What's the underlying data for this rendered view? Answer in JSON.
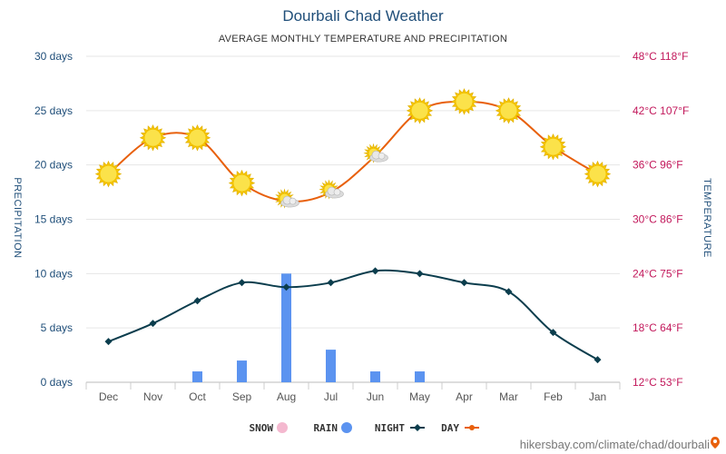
{
  "chart_data": {
    "type": "line",
    "title": "Dourbali Chad Weather",
    "subtitle": "AVERAGE MONTHLY TEMPERATURE AND PRECIPITATION",
    "categories": [
      "Jan",
      "Feb",
      "Mar",
      "Apr",
      "May",
      "Jun",
      "Jul",
      "Aug",
      "Sep",
      "Oct",
      "Nov",
      "Dec"
    ],
    "left_axis": {
      "label": "PRECIPITATION",
      "ylim": [
        0,
        30
      ],
      "ticks": [
        {
          "value": 0,
          "label": "0 days"
        },
        {
          "value": 5,
          "label": "5 days"
        },
        {
          "value": 10,
          "label": "10 days"
        },
        {
          "value": 15,
          "label": "15 days"
        },
        {
          "value": 20,
          "label": "20 days"
        },
        {
          "value": 25,
          "label": "25 days"
        },
        {
          "value": 30,
          "label": "30 days"
        }
      ]
    },
    "right_axis": {
      "label": "TEMPERATURE",
      "ylim": [
        12,
        48
      ],
      "ticks": [
        {
          "value": 12,
          "label": "12°C 53°F"
        },
        {
          "value": 18,
          "label": "18°C 64°F"
        },
        {
          "value": 24,
          "label": "24°C 75°F"
        },
        {
          "value": 30,
          "label": "30°C 86°F"
        },
        {
          "value": 36,
          "label": "36°C 96°F"
        },
        {
          "value": 42,
          "label": "42°C 107°F"
        },
        {
          "value": 48,
          "label": "48°C 118°F"
        }
      ]
    },
    "series": [
      {
        "name": "DAY",
        "axis": "right",
        "color": "#e8600c",
        "values": [
          35,
          38,
          42,
          43,
          42,
          37,
          33,
          32,
          34,
          39,
          39,
          35
        ]
      },
      {
        "name": "NIGHT",
        "axis": "right",
        "color": "#0b3d4d",
        "values": [
          14.5,
          17.5,
          22,
          23,
          24,
          24.3,
          23,
          22.5,
          23,
          21,
          18.5,
          16.5
        ]
      },
      {
        "name": "RAIN",
        "axis": "left",
        "color": "#5b93f0",
        "values": [
          0,
          0,
          0,
          0,
          1,
          1,
          3,
          10,
          2,
          1,
          0,
          0
        ]
      },
      {
        "name": "SNOW",
        "axis": "left",
        "color": "#f4b8cf",
        "values": [
          0,
          0,
          0,
          0,
          0,
          0,
          0,
          0,
          0,
          0,
          0,
          0
        ]
      }
    ],
    "icons": [
      "sun",
      "sun",
      "sun",
      "sun",
      "sun",
      "sun-cloud",
      "sun-cloud",
      "sun-cloud",
      "sun",
      "sun",
      "sun",
      "sun"
    ],
    "grid": true,
    "legend_position": "bottom",
    "x_reversed": true
  },
  "source_text": "hikersbay.com/climate/chad/dourbali",
  "pin_icon": "location-pin-icon"
}
